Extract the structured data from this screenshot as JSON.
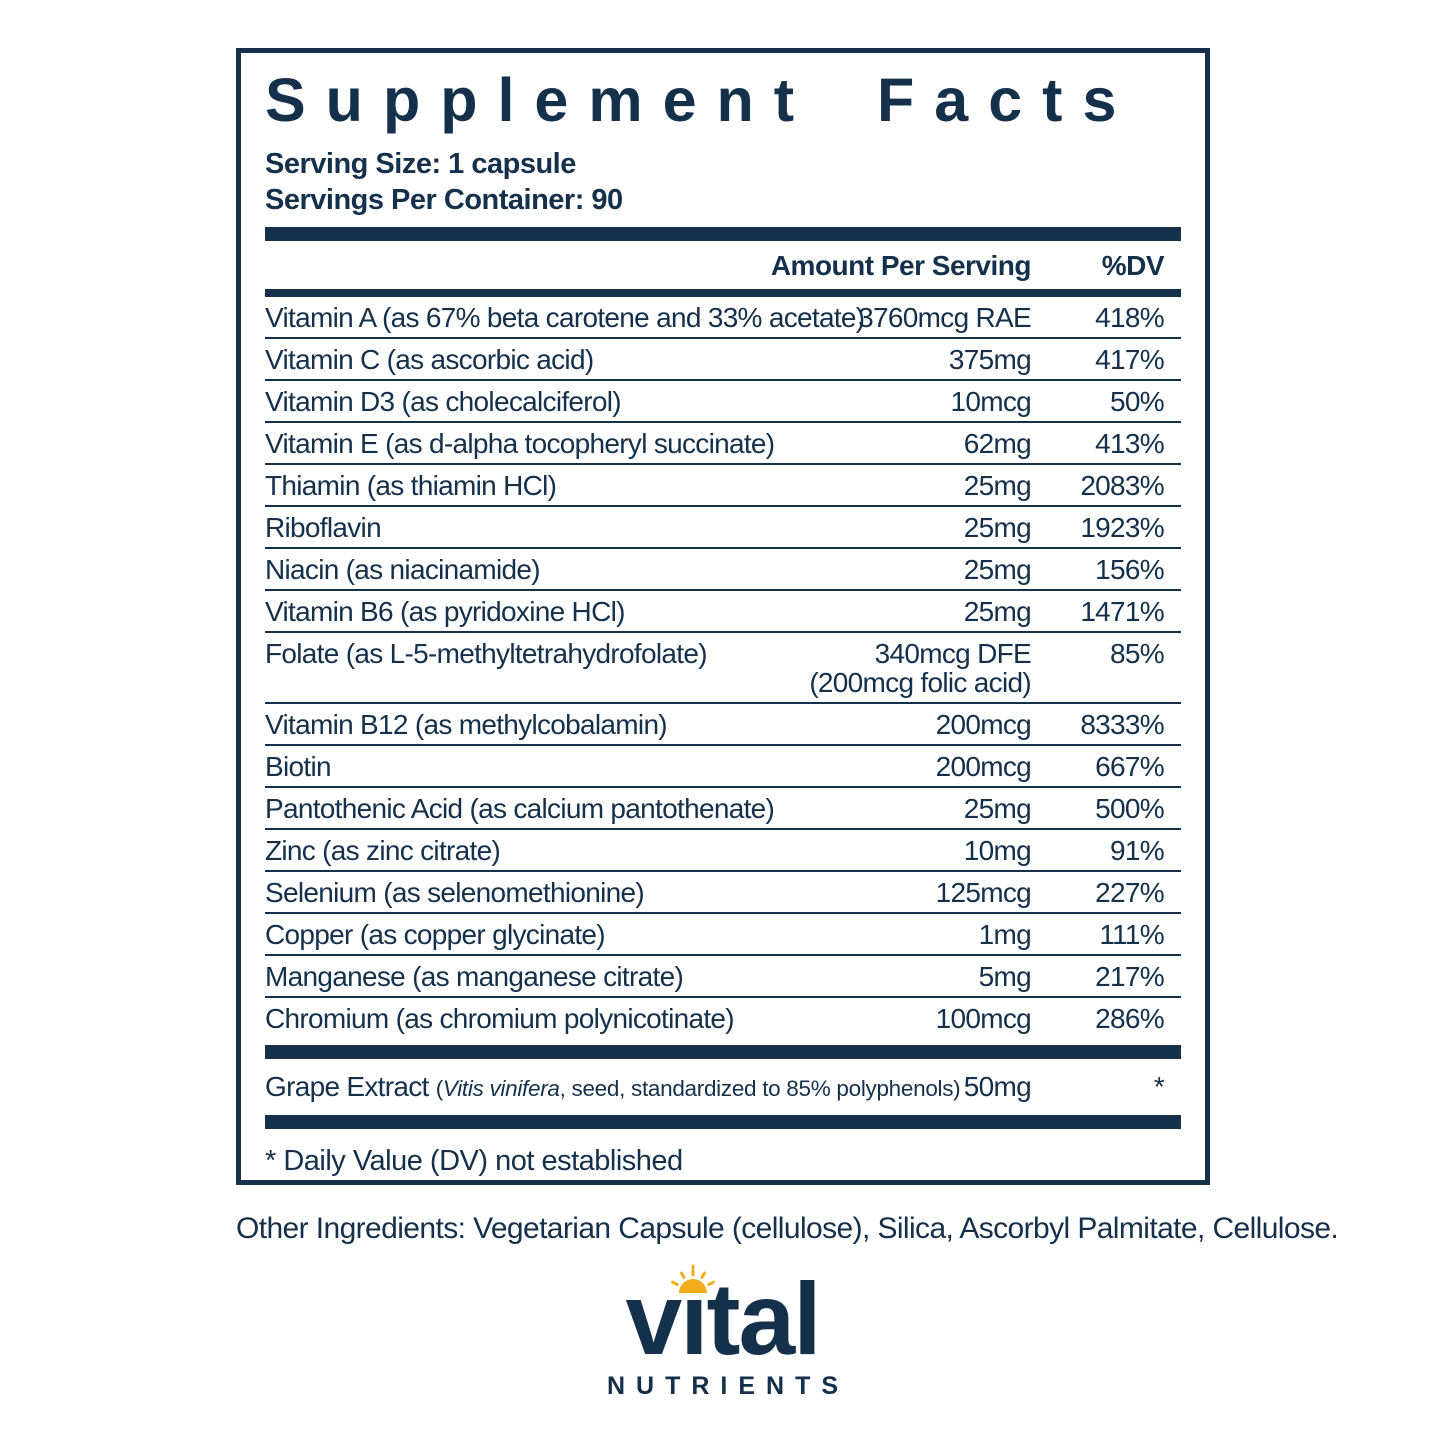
{
  "panel": {
    "title": "Supplement Facts",
    "serving_size": "Serving Size: 1 capsule",
    "servings_per_container": "Servings Per Container: 90",
    "footnote": "* Daily Value (DV) not established"
  },
  "table": {
    "amount_header": "Amount Per Serving",
    "dv_header": "%DV",
    "rows": [
      {
        "name": "Vitamin A (as 67% beta carotene and 33% acetate)",
        "amount": "3760mcg RAE",
        "dv": "418%"
      },
      {
        "name": "Vitamin C (as ascorbic acid)",
        "amount": "375mg",
        "dv": "417%"
      },
      {
        "name": "Vitamin D3 (as cholecalciferol)",
        "amount": "10mcg",
        "dv": "50%"
      },
      {
        "name": "Vitamin E (as d-alpha tocopheryl succinate)",
        "amount": "62mg",
        "dv": "413%"
      },
      {
        "name": "Thiamin (as thiamin HCl)",
        "amount": "25mg",
        "dv": "2083%"
      },
      {
        "name": "Riboflavin",
        "amount": "25mg",
        "dv": "1923%"
      },
      {
        "name": "Niacin (as niacinamide)",
        "amount": "25mg",
        "dv": "156%"
      },
      {
        "name": "Vitamin B6 (as pyridoxine HCl)",
        "amount": "25mg",
        "dv": "1471%"
      },
      {
        "name": "Folate (as L-5-methyltetrahydrofolate)",
        "amount": "340mcg DFE",
        "amount_note": "(200mcg folic acid)",
        "dv": "85%"
      },
      {
        "name": "Vitamin B12 (as methylcobalamin)",
        "amount": "200mcg",
        "dv": "8333%"
      },
      {
        "name": "Biotin",
        "amount": "200mcg",
        "dv": "667%"
      },
      {
        "name": "Pantothenic Acid (as calcium pantothenate)",
        "amount": "25mg",
        "dv": "500%"
      },
      {
        "name": "Zinc (as zinc citrate)",
        "amount": "10mg",
        "dv": "91%"
      },
      {
        "name": "Selenium (as selenomethionine)",
        "amount": "125mcg",
        "dv": "227%"
      },
      {
        "name": "Copper (as copper glycinate)",
        "amount": "1mg",
        "dv": "111%"
      },
      {
        "name": "Manganese (as manganese citrate)",
        "amount": "5mg",
        "dv": "217%"
      },
      {
        "name": "Chromium (as chromium polynicotinate)",
        "amount": "100mcg",
        "dv": "286%"
      }
    ]
  },
  "grape": {
    "name": "Grape Extract ",
    "detail_open": "(",
    "latin": "Vitis vinifera",
    "detail_rest": ", seed, standardized to 85% polyphenols)",
    "amount": "50mg",
    "dv": "*"
  },
  "other_ingredients": "Other Ingredients: Vegetarian Capsule (cellulose), Silica, Ascorbyl Palmitate, Cellulose.",
  "logo": {
    "word_start": "v",
    "dotless_i": "ı",
    "word_end": "tal",
    "subtitle": "NUTRIENTS",
    "sun_icon": "half-sun-with-rays"
  },
  "colors": {
    "navy": "#14304A",
    "sun_gold": "#F2AC1C",
    "background": "#FFFFFF"
  }
}
